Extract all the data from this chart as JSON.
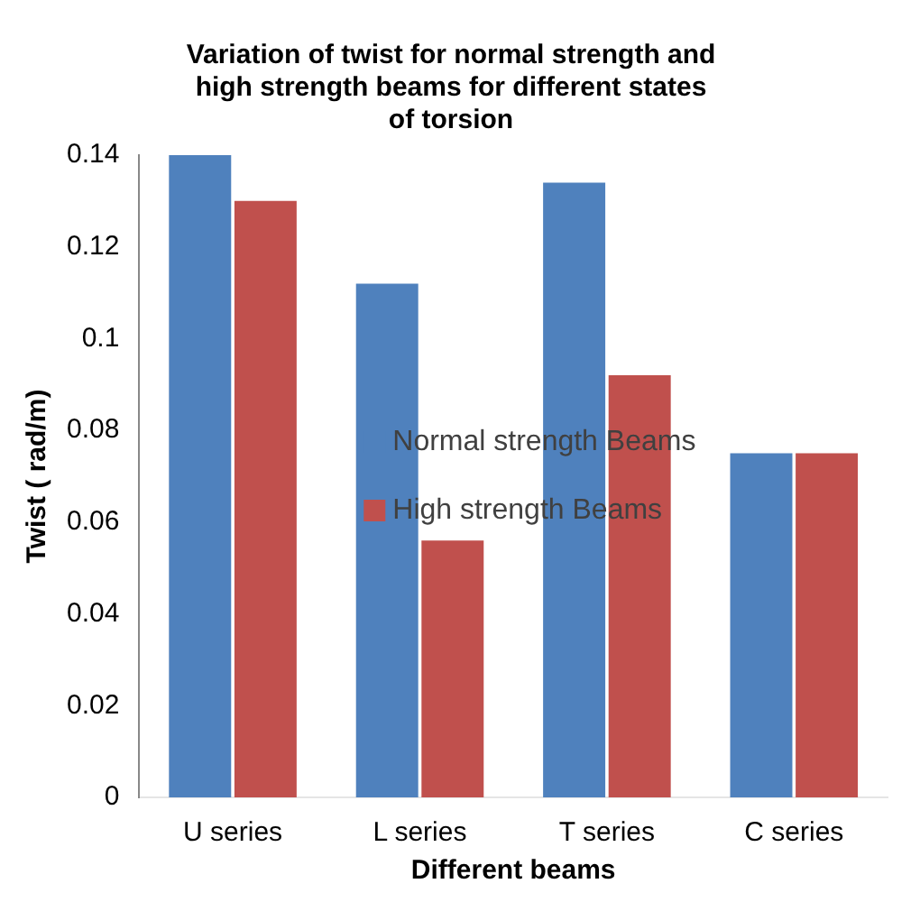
{
  "chart_data": {
    "type": "bar",
    "title": "Variation of twist for normal strength and high strength beams for different states of torsion",
    "xlabel": "Different beams",
    "ylabel": "Twist ( rad/m)",
    "categories": [
      "U series",
      "L series",
      "T series",
      "C series"
    ],
    "series": [
      {
        "name": "Normal strength Beams",
        "color": "#4f81bd",
        "values": [
          0.14,
          0.112,
          0.134,
          0.075
        ]
      },
      {
        "name": "High strength Beams",
        "color": "#c0504d",
        "values": [
          0.13,
          0.056,
          0.092,
          0.075
        ]
      }
    ],
    "ylim": [
      0,
      0.14
    ],
    "yticks": [
      0,
      0.02,
      0.04,
      0.06,
      0.08,
      0.1,
      0.12,
      0.14
    ],
    "grid": false,
    "legend": "center"
  }
}
